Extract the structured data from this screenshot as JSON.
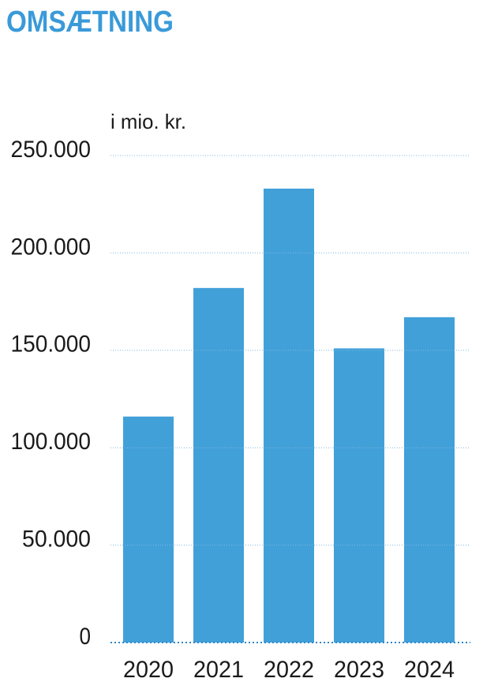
{
  "chart_data": {
    "type": "bar",
    "title": "OMSÆTNING",
    "y_label": "i mio. kr.",
    "categories": [
      "2020",
      "2021",
      "2022",
      "2023",
      "2024"
    ],
    "values": [
      116000,
      182000,
      233000,
      151000,
      167000
    ],
    "color": "#42a0d9",
    "ylim": [
      0,
      250000
    ],
    "yticks": [
      0,
      {
        "value": 50000,
        "label": "50.000"
      },
      {
        "value": 100000,
        "label": "100.000"
      },
      {
        "value": 150000,
        "label": "150.000"
      },
      {
        "value": 200000,
        "label": "200.000"
      },
      {
        "value": 250000,
        "label": "250.000"
      }
    ],
    "grid": true
  }
}
